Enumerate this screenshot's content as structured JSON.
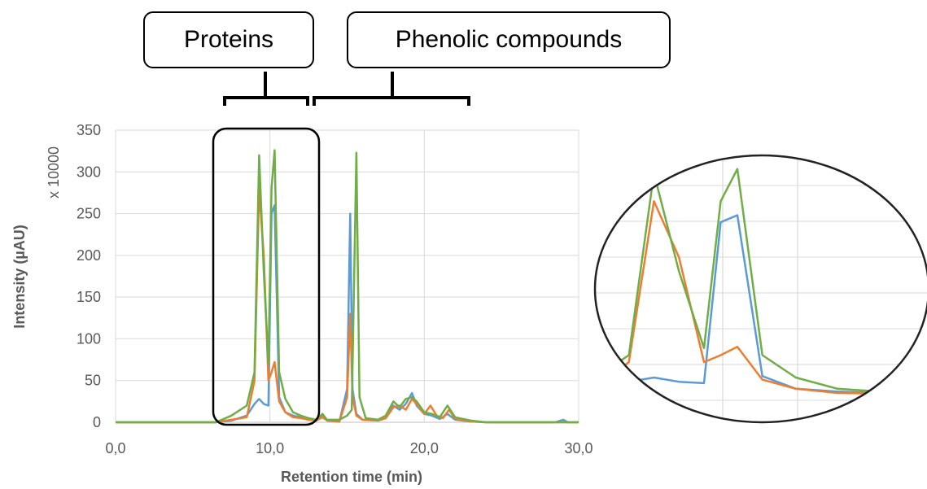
{
  "annotations": {
    "proteins_label": "Proteins",
    "phenolic_label": "Phenolic compounds"
  },
  "chart_data": {
    "type": "line",
    "title": "",
    "xlabel": "Retention time (min)",
    "ylabel": "Intensity (µAU)",
    "y_multiplier_label": "x 10000",
    "xlim": [
      0,
      30
    ],
    "ylim": [
      0,
      350
    ],
    "x_ticks": [
      "0,0",
      "10,0",
      "20,0",
      "30,0"
    ],
    "y_ticks": [
      "0",
      "50",
      "100",
      "150",
      "200",
      "250",
      "300",
      "350"
    ],
    "grid": true,
    "series": [
      {
        "color": "#5b9bd5",
        "points": [
          [
            0,
            0
          ],
          [
            6.5,
            0
          ],
          [
            7.5,
            2
          ],
          [
            8.5,
            8
          ],
          [
            9.0,
            22
          ],
          [
            9.3,
            28
          ],
          [
            9.6,
            22
          ],
          [
            9.9,
            20
          ],
          [
            10.1,
            250
          ],
          [
            10.3,
            260
          ],
          [
            10.6,
            30
          ],
          [
            11.0,
            12
          ],
          [
            11.5,
            8
          ],
          [
            12.0,
            6
          ],
          [
            12.5,
            4
          ],
          [
            13.0,
            2
          ],
          [
            13.4,
            8
          ],
          [
            13.7,
            2
          ],
          [
            14.5,
            1
          ],
          [
            15.0,
            40
          ],
          [
            15.2,
            250
          ],
          [
            15.35,
            40
          ],
          [
            15.6,
            10
          ],
          [
            16.0,
            3
          ],
          [
            17.0,
            2
          ],
          [
            17.5,
            5
          ],
          [
            18.0,
            20
          ],
          [
            18.4,
            15
          ],
          [
            18.8,
            22
          ],
          [
            19.2,
            35
          ],
          [
            19.5,
            20
          ],
          [
            20.0,
            10
          ],
          [
            20.5,
            8
          ],
          [
            21.0,
            4
          ],
          [
            21.5,
            10
          ],
          [
            22.0,
            3
          ],
          [
            23.0,
            1
          ],
          [
            24,
            0
          ],
          [
            28.5,
            0
          ],
          [
            29.0,
            3
          ],
          [
            29.3,
            0
          ],
          [
            30,
            0
          ]
        ]
      },
      {
        "color": "#ed7d31",
        "points": [
          [
            0,
            0
          ],
          [
            6.5,
            0
          ],
          [
            7.5,
            3
          ],
          [
            8.5,
            6
          ],
          [
            9.0,
            50
          ],
          [
            9.3,
            280
          ],
          [
            9.6,
            200
          ],
          [
            9.9,
            50
          ],
          [
            10.1,
            60
          ],
          [
            10.3,
            72
          ],
          [
            10.6,
            25
          ],
          [
            11.0,
            12
          ],
          [
            11.5,
            6
          ],
          [
            12.0,
            5
          ],
          [
            12.5,
            3
          ],
          [
            13.0,
            2
          ],
          [
            13.4,
            6
          ],
          [
            13.7,
            2
          ],
          [
            14.5,
            1
          ],
          [
            15.0,
            30
          ],
          [
            15.2,
            130
          ],
          [
            15.35,
            30
          ],
          [
            15.6,
            8
          ],
          [
            16.0,
            3
          ],
          [
            17.0,
            2
          ],
          [
            17.5,
            5
          ],
          [
            18.0,
            18
          ],
          [
            18.4,
            20
          ],
          [
            18.8,
            15
          ],
          [
            19.2,
            28
          ],
          [
            19.5,
            22
          ],
          [
            20.0,
            10
          ],
          [
            20.4,
            20
          ],
          [
            20.8,
            8
          ],
          [
            21.2,
            5
          ],
          [
            21.6,
            15
          ],
          [
            22.0,
            4
          ],
          [
            23.0,
            1
          ],
          [
            24,
            0
          ],
          [
            30,
            0
          ]
        ]
      },
      {
        "color": "#70ad47",
        "points": [
          [
            0,
            0
          ],
          [
            6.5,
            0
          ],
          [
            7.5,
            8
          ],
          [
            8.5,
            20
          ],
          [
            9.0,
            60
          ],
          [
            9.3,
            320
          ],
          [
            9.6,
            180
          ],
          [
            9.9,
            70
          ],
          [
            10.1,
            280
          ],
          [
            10.3,
            326
          ],
          [
            10.6,
            60
          ],
          [
            11.0,
            28
          ],
          [
            11.5,
            12
          ],
          [
            12.0,
            8
          ],
          [
            12.5,
            5
          ],
          [
            13.0,
            3
          ],
          [
            13.4,
            10
          ],
          [
            13.7,
            3
          ],
          [
            14.5,
            3
          ],
          [
            15.0,
            8
          ],
          [
            15.3,
            15
          ],
          [
            15.6,
            323
          ],
          [
            15.8,
            30
          ],
          [
            16.2,
            5
          ],
          [
            17.0,
            3
          ],
          [
            17.5,
            8
          ],
          [
            18.0,
            25
          ],
          [
            18.4,
            18
          ],
          [
            18.8,
            28
          ],
          [
            19.2,
            30
          ],
          [
            19.5,
            25
          ],
          [
            20.0,
            12
          ],
          [
            20.5,
            10
          ],
          [
            21.0,
            6
          ],
          [
            21.5,
            20
          ],
          [
            22.0,
            6
          ],
          [
            23.0,
            2
          ],
          [
            24,
            0
          ],
          [
            30,
            0
          ]
        ]
      }
    ]
  },
  "zoom_inset": {
    "description_none": "",
    "series_colors": [
      "#5b9bd5",
      "#ed7d31",
      "#70ad47"
    ]
  }
}
